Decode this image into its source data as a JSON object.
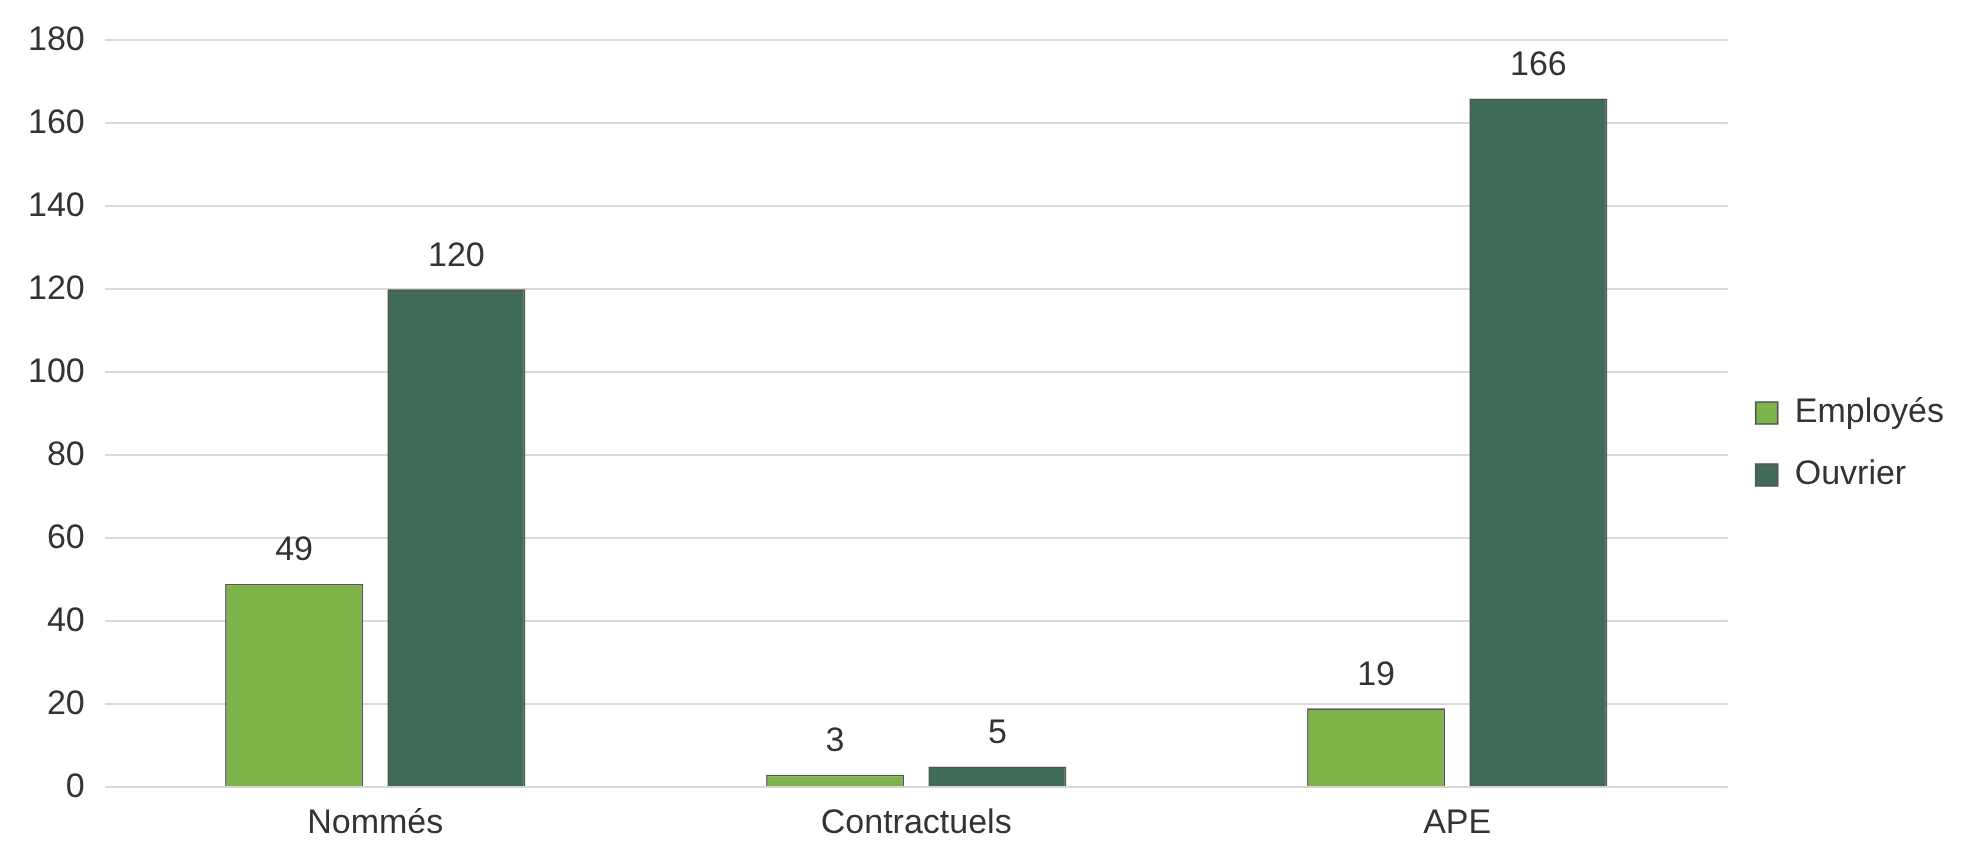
{
  "chart_data": {
    "type": "bar",
    "categories": [
      "Nommés",
      "Contractuels",
      "APE"
    ],
    "series": [
      {
        "name": "Employés",
        "color": "#7db44a",
        "values": [
          49,
          3,
          19
        ]
      },
      {
        "name": "Ouvrier",
        "color": "#3f6b58",
        "values": [
          120,
          5,
          166
        ]
      }
    ],
    "ylim": [
      0,
      180
    ],
    "yticks": [
      0,
      20,
      40,
      60,
      80,
      100,
      120,
      140,
      160,
      180
    ],
    "grid": "y",
    "legend": "right",
    "data_labels": true
  }
}
